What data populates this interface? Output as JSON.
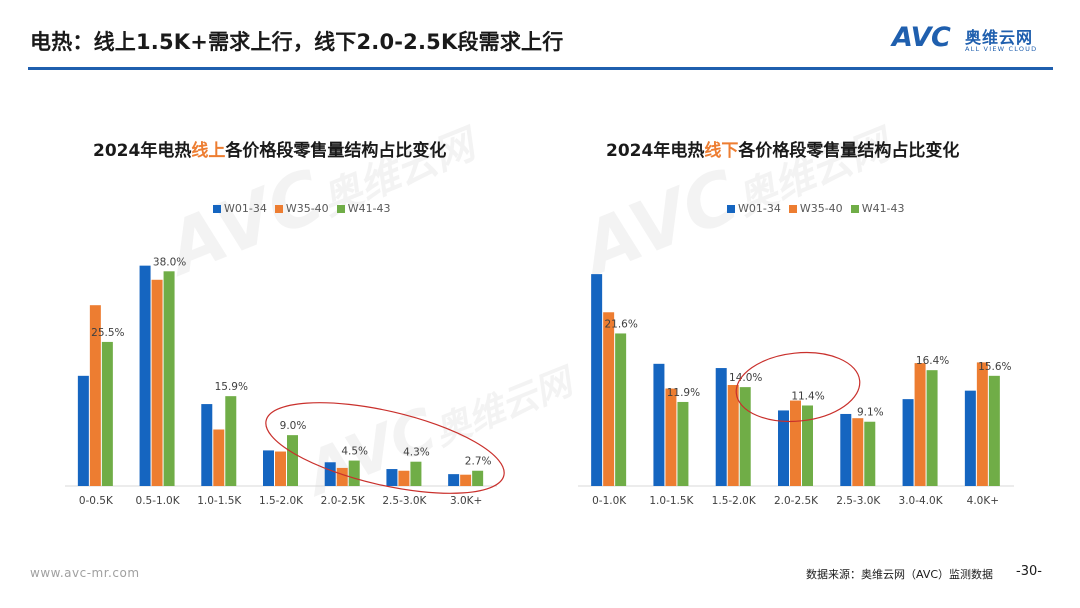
{
  "header": {
    "title": "电热：线上1.5K+需求上行，线下2.0-2.5K段需求上行",
    "logo_letters": "AVC",
    "logo_cn": "奥维云网",
    "logo_en": "ALL VIEW CLOUD"
  },
  "colors": {
    "accent": "#1f5fae",
    "series": [
      "#1565c0",
      "#ed7d31",
      "#70ad47"
    ],
    "highlight_ellipse": "#c9302c"
  },
  "charts": [
    {
      "title_prefix": "2024年电热",
      "title_highlight": "线上",
      "title_suffix": "各价格段零售量结构占比变化"
    },
    {
      "title_prefix": "2024年电热",
      "title_highlight": "线下",
      "title_suffix": "各价格段零售量结构占比变化"
    }
  ],
  "chart_data": [
    {
      "type": "bar",
      "title": "2024年电热线上各价格段零售量结构占比变化",
      "categories": [
        "0-0.5K",
        "0.5-1.0K",
        "1.0-1.5K",
        "1.5-2.0K",
        "2.0-2.5K",
        "2.5-3.0K",
        "3.0K+"
      ],
      "series": [
        {
          "name": "W01-34",
          "values": [
            19.5,
            39.0,
            14.5,
            6.3,
            4.2,
            3.0,
            2.1
          ]
        },
        {
          "name": "W35-40",
          "values": [
            32.0,
            36.5,
            10.0,
            6.1,
            3.2,
            2.7,
            2.0
          ]
        },
        {
          "name": "W41-43",
          "values": [
            25.5,
            38.0,
            15.9,
            9.0,
            4.5,
            4.3,
            2.7
          ]
        }
      ],
      "data_labels": [
        "25.5%",
        "38.0%",
        "15.9%",
        "9.0%",
        "4.5%",
        "4.3%",
        "2.7%"
      ],
      "ylim": [
        0,
        40
      ],
      "legend_position": "top",
      "grid": false,
      "highlight": "ellipse around 1.5-2.0K to 3.0K+"
    },
    {
      "type": "bar",
      "title": "2024年电热线下各价格段零售量结构占比变化",
      "categories": [
        "0-1.0K",
        "1.0-1.5K",
        "1.5-2.0K",
        "2.0-2.5K",
        "2.5-3.0K",
        "3.0-4.0K",
        "4.0K+"
      ],
      "series": [
        {
          "name": "W01-34",
          "values": [
            30.0,
            17.3,
            16.7,
            10.7,
            10.2,
            12.3,
            13.5
          ]
        },
        {
          "name": "W35-40",
          "values": [
            24.6,
            13.8,
            14.3,
            12.1,
            9.6,
            17.4,
            17.5
          ]
        },
        {
          "name": "W41-43",
          "values": [
            21.6,
            11.9,
            14.0,
            11.4,
            9.1,
            16.4,
            15.6
          ]
        }
      ],
      "data_labels": [
        "21.6%",
        "11.9%",
        "14.0%",
        "11.4%",
        "9.1%",
        "16.4%",
        "15.6%"
      ],
      "ylim": [
        0,
        32
      ],
      "legend_position": "top",
      "grid": false,
      "highlight": "ellipse around 2.0-2.5K"
    }
  ],
  "watermarks": [
    "AVC",
    "奥维云网",
    "ALL VIEW CLOUD"
  ],
  "footer": {
    "url": "www.avc-mr.com",
    "source": "数据来源：奥维云网（AVC）监测数据",
    "page": "-30-"
  }
}
